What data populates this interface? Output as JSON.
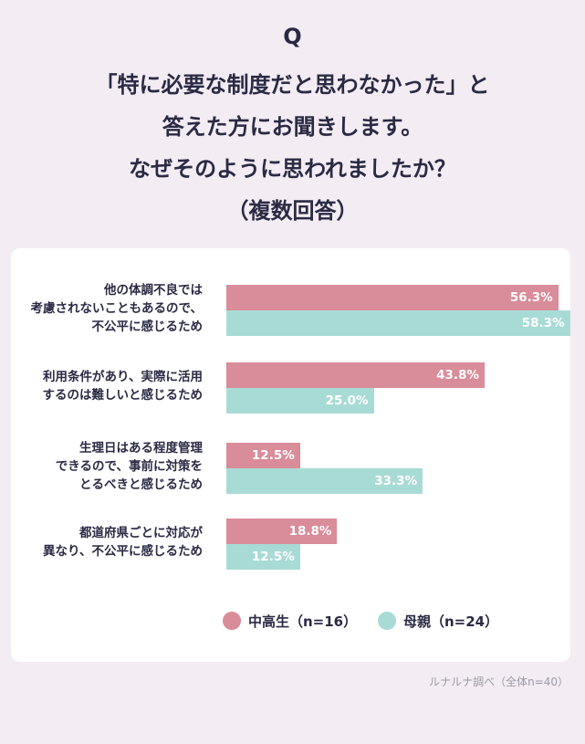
{
  "question_mark": "Q",
  "title_lines": [
    "「特に必要な制度だと思わなかった」と",
    "答えた方にお聞きします。",
    "なぜそのように思われましたか？",
    "（複数回答）"
  ],
  "source": "ルナルナ調べ（全体n=40）",
  "chart_data": {
    "type": "bar",
    "orientation": "horizontal",
    "categories": [
      [
        "他の体調不良では",
        "考慮されないこともあるので、",
        "不公平に感じるため"
      ],
      [
        "利用条件があり、実際に活用",
        "するのは難しいと感じるため"
      ],
      [
        "生理日はある程度管理",
        "できるので、事前に対策を",
        "とるべきと感じるため"
      ],
      [
        "都道府県ごとに対応が",
        "異なり、不公平に感じるため"
      ]
    ],
    "series": [
      {
        "name": "中高生（n=16）",
        "values": [
          56.3,
          43.8,
          12.5,
          18.8
        ],
        "color": "#d98c9a"
      },
      {
        "name": "母親（n=24）",
        "values": [
          58.3,
          25.0,
          33.3,
          12.5
        ],
        "color": "#a9dbd6"
      }
    ],
    "value_suffix": "%",
    "xlim": [
      0,
      60
    ],
    "grid": false,
    "legend_position": "bottom"
  }
}
